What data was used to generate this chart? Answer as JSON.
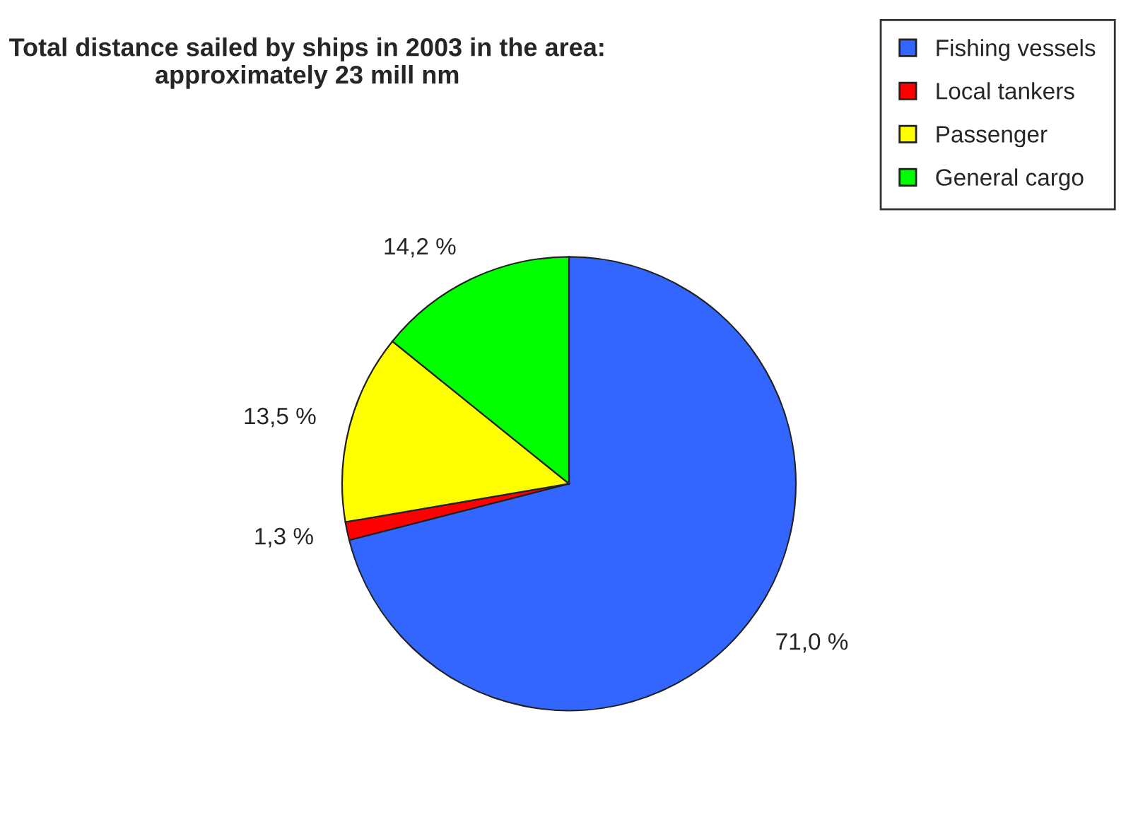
{
  "chart_data": {
    "type": "pie",
    "title": "Total distance sailed by ships in 2003 in the area:\napproximately 23 mill nm",
    "categories": [
      "Fishing vessels",
      "Local tankers",
      "Passenger",
      "General cargo"
    ],
    "values": [
      71.0,
      1.3,
      13.5,
      14.2
    ],
    "value_labels": [
      "71,0 %",
      "1,3 %",
      "13,5 %",
      "14,2 %"
    ],
    "colors": [
      "#3366ff",
      "#ff0000",
      "#ffff00",
      "#00ff00"
    ],
    "legend": "top right"
  }
}
